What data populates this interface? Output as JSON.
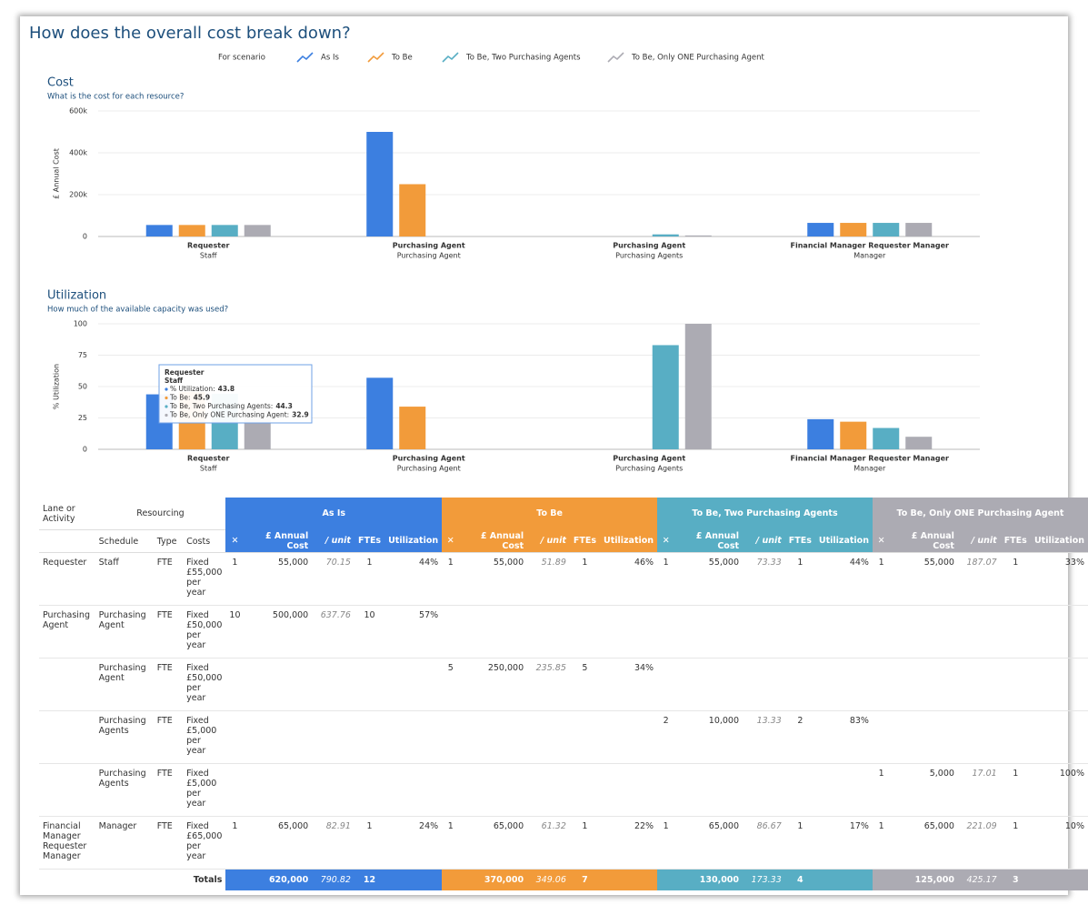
{
  "title": "How does the overall cost break down?",
  "legend_title": "For scenario",
  "chart_data": [
    {
      "type": "bar",
      "title": "Cost",
      "subtitle": "What is the cost for each resource?",
      "y_label": "£ Annual Cost",
      "categories": [
        [
          "Requester",
          "Staff"
        ],
        [
          "Purchasing Agent",
          "Purchasing Agent"
        ],
        [
          "Purchasing Agent",
          "Purchasing Agents"
        ],
        [
          "Financial Manager Requester Manager",
          "Manager"
        ]
      ],
      "series": [
        {
          "name": "As Is",
          "color": "#3c7fe0",
          "values": [
            55000,
            500000,
            null,
            65000
          ]
        },
        {
          "name": "To Be",
          "color": "#f29b3a",
          "values": [
            55000,
            250000,
            null,
            65000
          ]
        },
        {
          "name": "To Be, Two Purchasing Agents",
          "color": "#58aec4",
          "values": [
            55000,
            null,
            10000,
            65000
          ]
        },
        {
          "name": "To Be, Only ONE Purchasing Agent",
          "color": "#acabb3",
          "values": [
            55000,
            null,
            5000,
            65000
          ]
        }
      ],
      "ylim": [
        0,
        600000
      ],
      "yticks": [
        0,
        {
          "value": 200000,
          "label": "200k"
        },
        {
          "value": 400000,
          "label": "400k"
        },
        {
          "value": 600000,
          "label": "600k"
        }
      ],
      "grid": true
    },
    {
      "type": "bar",
      "title": "Utilization",
      "subtitle": "How much of the available capacity was used?",
      "y_label": "% Utilization",
      "categories": [
        [
          "Requester",
          "Staff"
        ],
        [
          "Purchasing Agent",
          "Purchasing Agent"
        ],
        [
          "Purchasing Agent",
          "Purchasing Agents"
        ],
        [
          "Financial Manager Requester Manager",
          "Manager"
        ]
      ],
      "series": [
        {
          "color": "#3c7fe0",
          "values": [
            43.8,
            57,
            null,
            24
          ]
        },
        {
          "color": "#f29b3a",
          "values": [
            45.9,
            34,
            null,
            22
          ]
        },
        {
          "color": "#58aec4",
          "values": [
            44.3,
            null,
            83,
            17
          ]
        },
        {
          "color": "#acabb3",
          "values": [
            32.9,
            null,
            100,
            10
          ]
        }
      ],
      "ylim": [
        0,
        100
      ],
      "yticks": [
        0,
        25,
        50,
        75,
        100
      ],
      "grid": true,
      "tooltip": {
        "title": "Requester",
        "subtitle": "Staff",
        "labels": [
          "% Utilization:",
          "To Be:",
          "To Be, Two Purchasing Agents:",
          "To Be, Only ONE Purchasing Agent:"
        ]
      }
    }
  ],
  "table": {
    "lane_header": "Lane or Activity",
    "resourcing_header": "Resourcing",
    "columns": [
      "Schedule",
      "Type",
      "Costs"
    ],
    "scenario_columns": [
      "✕",
      "£ Annual Cost",
      "/ unit",
      "FTEs",
      "Utilization"
    ],
    "rows": [
      [
        "Requester",
        "Staff",
        "FTE",
        "Fixed £55,000 per year",
        "1",
        "55,000",
        "70.15",
        "1",
        "44%",
        "1",
        "55,000",
        "51.89",
        "1",
        "46%",
        "1",
        "55,000",
        "73.33",
        "1",
        "44%",
        "1",
        "55,000",
        "187.07",
        "1",
        "33%"
      ],
      [
        "Purchasing Agent",
        "Purchasing Agent",
        "FTE",
        "Fixed £50,000 per year",
        "10",
        "500,000",
        "637.76",
        "10",
        "57%",
        null,
        null,
        null,
        null,
        null,
        null,
        null,
        null,
        null,
        null,
        null,
        null,
        null,
        null,
        null
      ],
      [
        null,
        "Purchasing Agent",
        "FTE",
        "Fixed £50,000 per year",
        null,
        null,
        null,
        null,
        null,
        "5",
        "250,000",
        "235.85",
        "5",
        "34%",
        null,
        null,
        null,
        null,
        null,
        null,
        null,
        null,
        null,
        null
      ],
      [
        null,
        "Purchasing Agents",
        "FTE",
        "Fixed £5,000 per year",
        null,
        null,
        null,
        null,
        null,
        null,
        null,
        null,
        null,
        null,
        "2",
        "10,000",
        "13.33",
        "2",
        "83%",
        null,
        null,
        null,
        null,
        null
      ],
      [
        null,
        "Purchasing Agents",
        "FTE",
        "Fixed £5,000 per year",
        null,
        null,
        null,
        null,
        null,
        null,
        null,
        null,
        null,
        null,
        null,
        null,
        null,
        null,
        null,
        "1",
        "5,000",
        "17.01",
        "1",
        "100%"
      ],
      [
        "Financial Manager Requester Manager",
        "Manager",
        "FTE",
        "Fixed £65,000 per year",
        "1",
        "65,000",
        "82.91",
        "1",
        "24%",
        "1",
        "65,000",
        "61.32",
        "1",
        "22%",
        "1",
        "65,000",
        "86.67",
        "1",
        "17%",
        "1",
        "65,000",
        "221.09",
        "1",
        "10%"
      ]
    ],
    "totals_label": "Totals",
    "totals": [
      [
        "620,000",
        "790.82",
        "12"
      ],
      [
        "370,000",
        "349.06",
        "7"
      ],
      [
        "130,000",
        "173.33",
        "4"
      ],
      [
        "125,000",
        "425.17",
        "3"
      ]
    ]
  }
}
